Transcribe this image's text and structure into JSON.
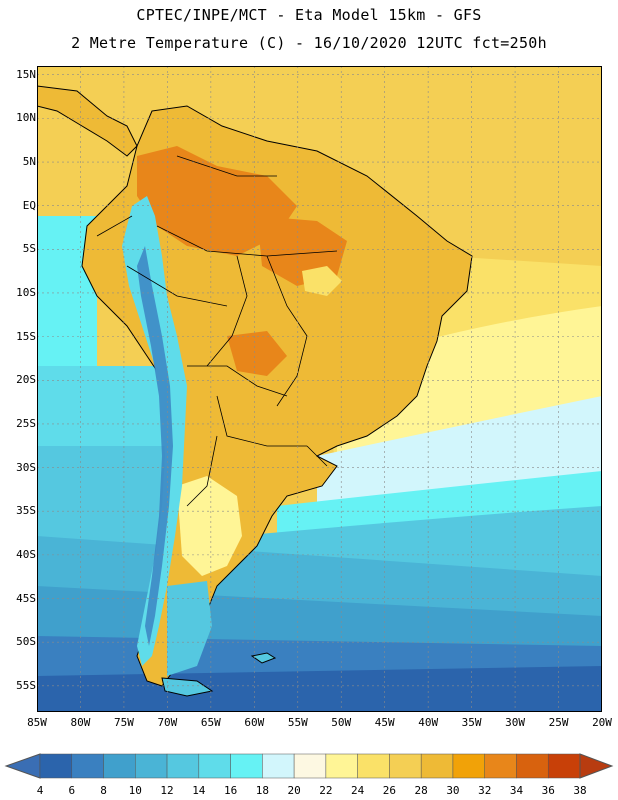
{
  "title_line1": "CPTEC/INPE/MCT  -   Eta Model 15km  -  GFS",
  "title_line2": "2 Metre Temperature (C) - 16/10/2020 12UTC fct=250h",
  "lat_labels": [
    "15N",
    "10N",
    "5N",
    "EQ",
    "5S",
    "10S",
    "15S",
    "20S",
    "25S",
    "30S",
    "35S",
    "40S",
    "45S",
    "50S",
    "55S"
  ],
  "lon_labels": [
    "85W",
    "80W",
    "75W",
    "70W",
    "65W",
    "60W",
    "55W",
    "50W",
    "45W",
    "40W",
    "35W",
    "30W",
    "25W",
    "20W"
  ],
  "map_extent": {
    "lon": [
      -85,
      -20
    ],
    "lat": [
      -58,
      16
    ]
  },
  "colorbar": {
    "ticks": [
      "4",
      "6",
      "8",
      "10",
      "12",
      "14",
      "16",
      "18",
      "20",
      "22",
      "24",
      "26",
      "28",
      "30",
      "32",
      "34",
      "36",
      "38"
    ],
    "colors": [
      "#2b64ac",
      "#3a80c0",
      "#40a0cc",
      "#4ab4d6",
      "#55c8e0",
      "#5fdcea",
      "#66f2f4",
      "#d2f6fc",
      "#fdf8e2",
      "#fff596",
      "#fae168",
      "#f4cf54",
      "#eeba36",
      "#f1a208",
      "#e8861a",
      "#d8620e",
      "#c84008"
    ],
    "low_arrow_color": "#3a6eb4",
    "high_arrow_color": "#b83c10"
  }
}
